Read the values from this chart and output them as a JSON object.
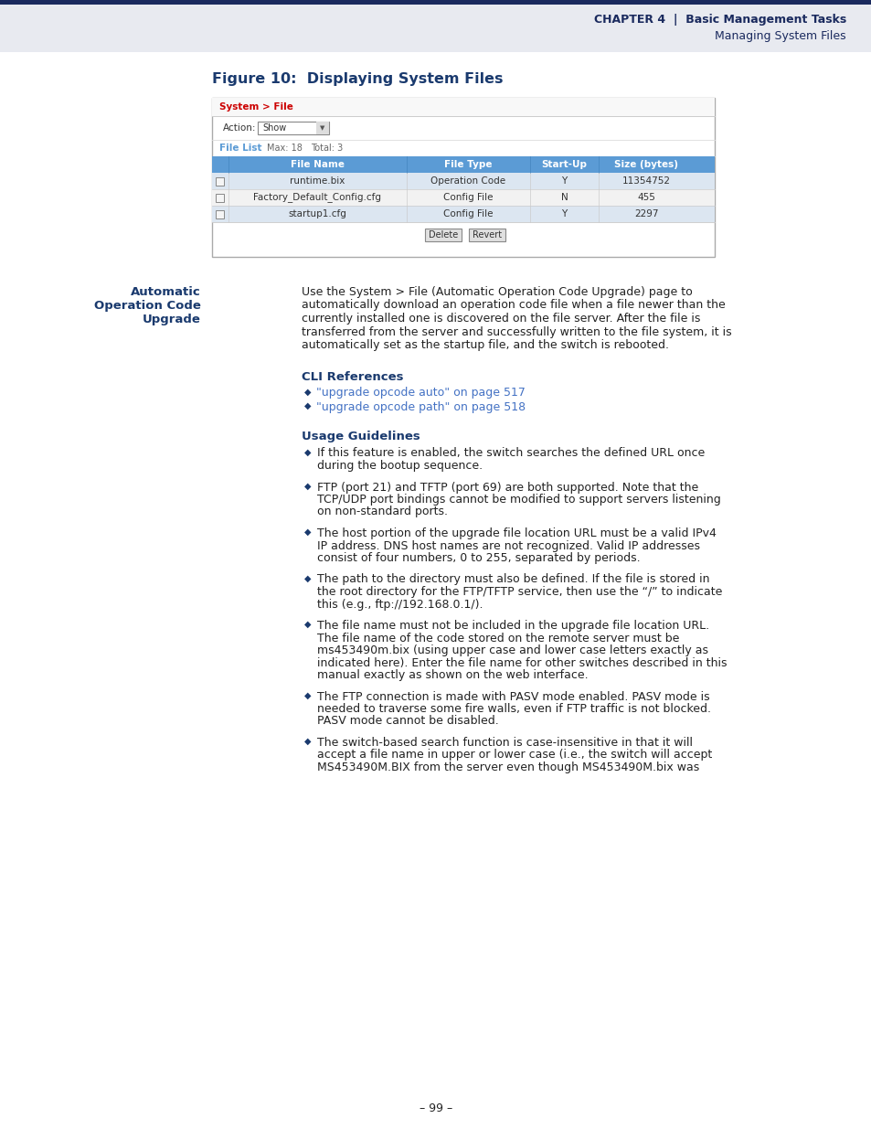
{
  "page_bg": "#ffffff",
  "header_bg": "#e8eaf0",
  "header_bar_color": "#1a2a5e",
  "header_chapter_text": "CHAPTER 4",
  "header_right1": "Basic Management Tasks",
  "header_right2": "Managing System Files",
  "figure_title": "Figure 10:  Displaying System Files",
  "figure_title_color": "#1a3a6e",
  "table_header_bg": "#5b9bd5",
  "table_header_text": "#ffffff",
  "table_row_odd_bg": "#dce6f1",
  "table_row_even_bg": "#f2f2f2",
  "table_nav_text": "System > File",
  "table_nav_color": "#cc0000",
  "table_action_label": "Action:",
  "table_dropdown_text": "Show",
  "table_filelist_text": "File List",
  "table_max_text": "Max: 18",
  "table_total_text": "Total: 3",
  "table_filelist_color": "#5b9bd5",
  "table_cols": [
    "",
    "File Name",
    "File Type",
    "Start-Up",
    "Size (bytes)"
  ],
  "table_col_widths": [
    18,
    195,
    135,
    75,
    105
  ],
  "table_rows": [
    [
      "",
      "runtime.bix",
      "Operation Code",
      "Y",
      "11354752"
    ],
    [
      "",
      "Factory_Default_Config.cfg",
      "Config File",
      "N",
      "455"
    ],
    [
      "",
      "startup1.cfg",
      "Config File",
      "Y",
      "2297"
    ]
  ],
  "left_label_lines": [
    "Automatic",
    "Operation Code",
    "Upgrade"
  ],
  "left_label_color": "#1a3a6e",
  "body_text": "Use the System > File (Automatic Operation Code Upgrade) page to automatically download an operation code file when a file newer than the currently installed one is discovered on the file server. After the file is transferred from the server and successfully written to the file system, it is automatically set as the startup file, and the switch is rebooted.",
  "cli_ref_title": "CLI References",
  "cli_ref_color": "#1a3a6e",
  "cli_links": [
    "\"upgrade opcode auto\" on page 517",
    "\"upgrade opcode path\" on page 518"
  ],
  "cli_link_color": "#4472c4",
  "usage_title": "Usage Guidelines",
  "usage_color": "#1a3a6e",
  "usage_bullets": [
    "If this feature is enabled, the switch searches the defined URL once\nduring the bootup sequence.",
    "FTP (port 21) and TFTP (port 69) are both supported. Note that the\nTCP/UDP port bindings cannot be modified to support servers listening\non non-standard ports.",
    "The host portion of the upgrade file location URL must be a valid IPv4\nIP address. DNS host names are not recognized. Valid IP addresses\nconsist of four numbers, 0 to 255, separated by periods.",
    "The path to the directory must also be defined. If the file is stored in\nthe root directory for the FTP/TFTP service, then use the “/” to indicate\nthis (e.g., ftp://192.168.0.1/).",
    "The file name must not be included in the upgrade file location URL.\nThe file name of the code stored on the remote server must be\nms453490m.bix (using upper case and lower case letters exactly as\nindicated here). Enter the file name for other switches described in this\nmanual exactly as shown on the web interface.",
    "The FTP connection is made with PASV mode enabled. PASV mode is\nneeded to traverse some fire walls, even if FTP traffic is not blocked.\nPASV mode cannot be disabled.",
    "The switch-based search function is case-insensitive in that it will\naccept a file name in upper or lower case (i.e., the switch will accept\nMS453490M.BIX from the server even though MS453490M.bix was"
  ],
  "bullet_color": "#1a3a6e",
  "page_number": "– 99 –",
  "text_color": "#222222",
  "text_fontsize": 9.0,
  "header_fontsize": 9.0,
  "table_fontsize": 7.5,
  "section_title_fontsize": 9.5,
  "figure_title_fontsize": 11.5
}
